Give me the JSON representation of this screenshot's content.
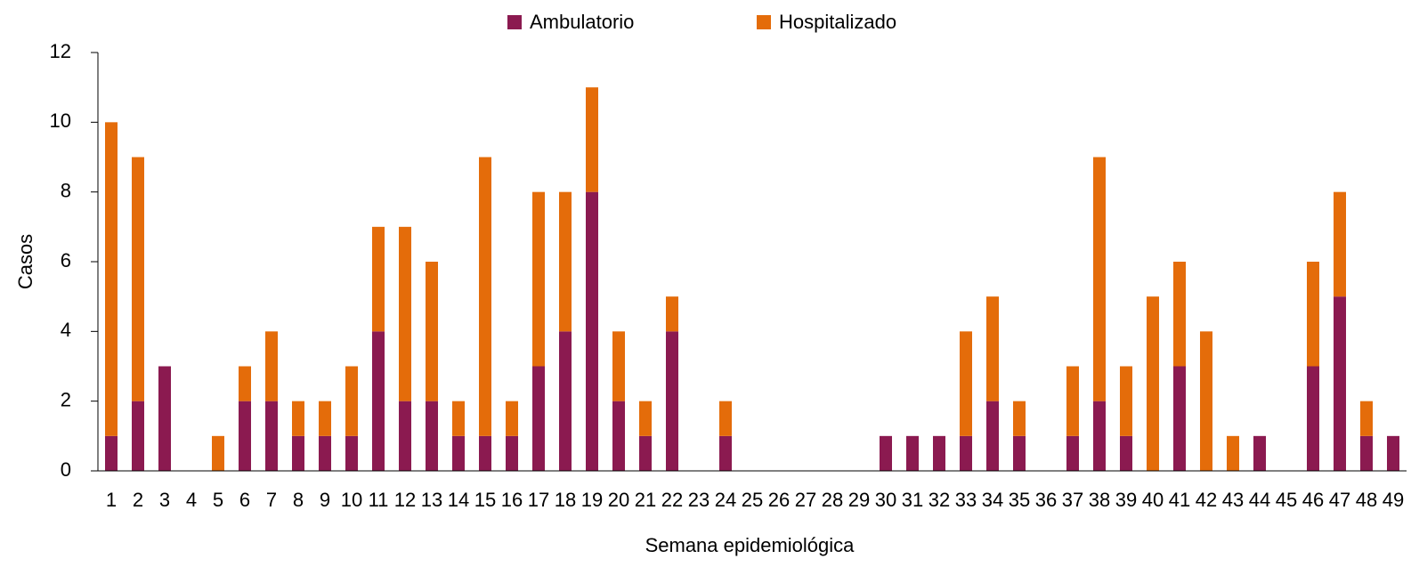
{
  "chart_data": {
    "type": "stacked_bar",
    "x_label": "Semana epidemiológica",
    "y_label": "Casos",
    "categories": [
      "1",
      "2",
      "3",
      "4",
      "5",
      "6",
      "7",
      "8",
      "9",
      "10",
      "11",
      "12",
      "13",
      "14",
      "15",
      "16",
      "17",
      "18",
      "19",
      "20",
      "21",
      "22",
      "23",
      "24",
      "25",
      "26",
      "27",
      "28",
      "29",
      "30",
      "31",
      "32",
      "33",
      "34",
      "35",
      "36",
      "37",
      "38",
      "39",
      "40",
      "41",
      "42",
      "43",
      "44",
      "45",
      "46",
      "47",
      "48",
      "49"
    ],
    "series": [
      {
        "name": "Ambulatorio",
        "color": "#8b1a50",
        "values": [
          1,
          2,
          3,
          0,
          0,
          2,
          2,
          1,
          1,
          1,
          4,
          2,
          2,
          1,
          1,
          1,
          3,
          4,
          8,
          2,
          1,
          4,
          0,
          1,
          0,
          0,
          0,
          0,
          0,
          1,
          1,
          1,
          1,
          2,
          1,
          0,
          1,
          2,
          1,
          0,
          3,
          0,
          0,
          1,
          0,
          3,
          5,
          1,
          1
        ]
      },
      {
        "name": "Hospitalizado",
        "color": "#e46c0a",
        "values": [
          9,
          7,
          0,
          0,
          1,
          1,
          2,
          1,
          1,
          2,
          3,
          5,
          4,
          1,
          8,
          1,
          5,
          4,
          3,
          2,
          1,
          1,
          0,
          1,
          0,
          0,
          0,
          0,
          0,
          0,
          0,
          0,
          3,
          3,
          1,
          0,
          2,
          7,
          2,
          5,
          3,
          4,
          1,
          0,
          0,
          3,
          3,
          1,
          0
        ]
      }
    ],
    "ylim": [
      0,
      12
    ],
    "yticks": [
      0,
      2,
      4,
      6,
      8,
      10,
      12
    ],
    "legend": "top"
  }
}
